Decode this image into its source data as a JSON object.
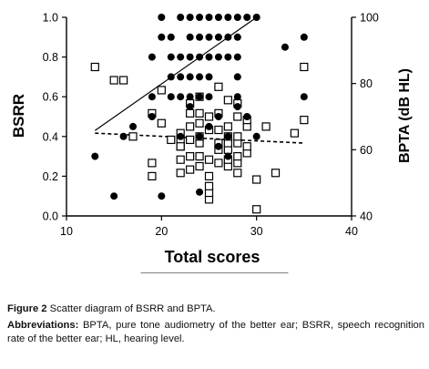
{
  "chart_data": {
    "type": "scatter",
    "xlabel": "Total scores",
    "ylabel": "BSRR",
    "y2label": "BPTA (dB HL)",
    "xlim": [
      10,
      40
    ],
    "ylim": [
      0,
      1.0
    ],
    "y2lim": [
      40,
      100
    ],
    "xticks": [
      "10",
      "20",
      "30",
      "40"
    ],
    "yticks": [
      "0.0",
      "0.2",
      "0.4",
      "0.6",
      "0.8",
      "1.0"
    ],
    "y2ticks": [
      "40",
      "60",
      "80",
      "100"
    ],
    "grid": false,
    "legend_position": "bottom",
    "series": [
      {
        "name": "BSRR",
        "marker": "filled-circle",
        "axis": "left",
        "color": "#000000",
        "points": [
          [
            13,
            0.3
          ],
          [
            15,
            0.1
          ],
          [
            16,
            0.4
          ],
          [
            17,
            0.45
          ],
          [
            19,
            0.5
          ],
          [
            20,
            0.1
          ],
          [
            20,
            1.0
          ],
          [
            22,
            0.4
          ],
          [
            22,
            0.6
          ],
          [
            22,
            0.7
          ],
          [
            22,
            0.8
          ],
          [
            22,
            1.0
          ],
          [
            23,
            0.55
          ],
          [
            23,
            0.6
          ],
          [
            23,
            0.7
          ],
          [
            23,
            0.8
          ],
          [
            23,
            0.9
          ],
          [
            23,
            1.0
          ],
          [
            24,
            0.4
          ],
          [
            24,
            0.6
          ],
          [
            24,
            0.7
          ],
          [
            24,
            0.8
          ],
          [
            24,
            0.9
          ],
          [
            24,
            1.0
          ],
          [
            25,
            0.6
          ],
          [
            25,
            0.7
          ],
          [
            25,
            0.8
          ],
          [
            25,
            0.9
          ],
          [
            25,
            1.0
          ],
          [
            26,
            0.35
          ],
          [
            26,
            0.5
          ],
          [
            26,
            0.8
          ],
          [
            26,
            0.9
          ],
          [
            26,
            1.0
          ],
          [
            27,
            0.3
          ],
          [
            27,
            0.4
          ],
          [
            27,
            0.8
          ],
          [
            27,
            0.9
          ],
          [
            27,
            1.0
          ],
          [
            28,
            0.55
          ],
          [
            28,
            0.6
          ],
          [
            28,
            0.7
          ],
          [
            28,
            0.8
          ],
          [
            28,
            0.9
          ],
          [
            28,
            1.0
          ],
          [
            29,
            0.5
          ],
          [
            29,
            1.0
          ],
          [
            30,
            0.4
          ],
          [
            30,
            1.0
          ],
          [
            21,
            0.6
          ],
          [
            21,
            0.7
          ],
          [
            21,
            0.8
          ],
          [
            21,
            0.9
          ],
          [
            20,
            0.9
          ],
          [
            19,
            0.6
          ],
          [
            19,
            0.8
          ],
          [
            24,
            0.12
          ],
          [
            33,
            0.85
          ],
          [
            35,
            0.9
          ],
          [
            35,
            0.6
          ],
          [
            25,
            0.45
          ]
        ],
        "fit_line": [
          [
            13,
            0.43
          ],
          [
            30,
            1.0
          ]
        ]
      },
      {
        "name": "BPTA",
        "marker": "open-square",
        "axis": "right",
        "color": "#000000",
        "points": [
          [
            13,
            85
          ],
          [
            15,
            81
          ],
          [
            16,
            81
          ],
          [
            17,
            64
          ],
          [
            19,
            56
          ],
          [
            19,
            52
          ],
          [
            19,
            71
          ],
          [
            20,
            78
          ],
          [
            20,
            68
          ],
          [
            21,
            63
          ],
          [
            22,
            53
          ],
          [
            22,
            57
          ],
          [
            22,
            61
          ],
          [
            22,
            63
          ],
          [
            22,
            65
          ],
          [
            22,
            61
          ],
          [
            23,
            54
          ],
          [
            23,
            58
          ],
          [
            23,
            63
          ],
          [
            23,
            67
          ],
          [
            23,
            71
          ],
          [
            23,
            74
          ],
          [
            24,
            55
          ],
          [
            24,
            58
          ],
          [
            24,
            62
          ],
          [
            24,
            64
          ],
          [
            24,
            68
          ],
          [
            24,
            71
          ],
          [
            24,
            76
          ],
          [
            25,
            45
          ],
          [
            25,
            47
          ],
          [
            25,
            49
          ],
          [
            25,
            52
          ],
          [
            25,
            57
          ],
          [
            25,
            66
          ],
          [
            25,
            70
          ],
          [
            26,
            56
          ],
          [
            26,
            60
          ],
          [
            26,
            62
          ],
          [
            26,
            66
          ],
          [
            26,
            71
          ],
          [
            26,
            79
          ],
          [
            27,
            55
          ],
          [
            27,
            57
          ],
          [
            27,
            60
          ],
          [
            27,
            62
          ],
          [
            27,
            64
          ],
          [
            27,
            67
          ],
          [
            27,
            75
          ],
          [
            28,
            53
          ],
          [
            28,
            56
          ],
          [
            28,
            58
          ],
          [
            28,
            62
          ],
          [
            28,
            64
          ],
          [
            28,
            70
          ],
          [
            28,
            74
          ],
          [
            29,
            59
          ],
          [
            29,
            61
          ],
          [
            29,
            67
          ],
          [
            29,
            69
          ],
          [
            30,
            42
          ],
          [
            30,
            51
          ],
          [
            31,
            67
          ],
          [
            32,
            53
          ],
          [
            34,
            65
          ],
          [
            35,
            85
          ],
          [
            35,
            69
          ]
        ],
        "fit_line": [
          [
            13,
            65
          ],
          [
            35,
            62
          ]
        ]
      }
    ]
  },
  "caption": {
    "figure_label": "Figure 2",
    "figure_text": "Scatter diagram of BSRR and BPTA.",
    "abbrev_label": "Abbreviations:",
    "abbrev_text": "BPTA, pure tone audiometry of the better ear; BSRR, speech recognition rate of the better ear; HL, hearing level."
  }
}
